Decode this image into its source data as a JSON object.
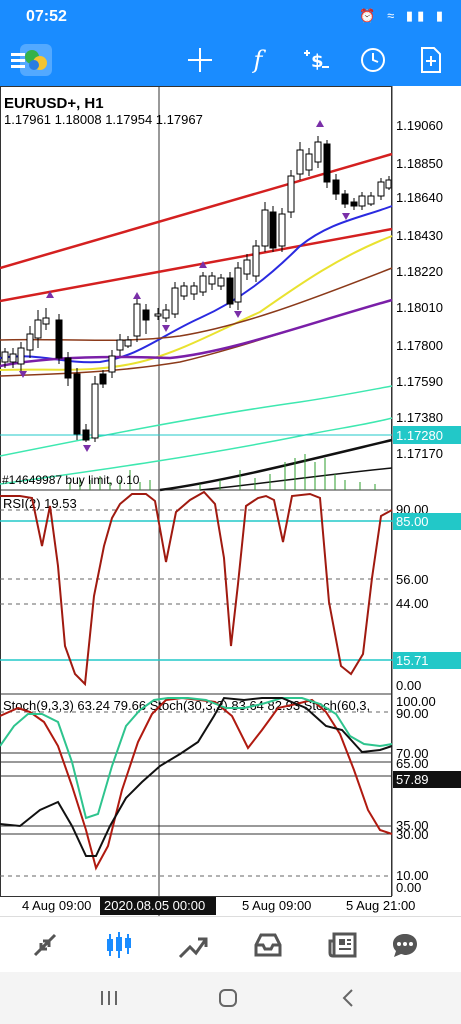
{
  "status_bar": {
    "time": "07:52",
    "icons": "⏰ ≈ ▮▮ ▮"
  },
  "toolbar": {
    "items": [
      "menu-icon",
      "app-logo",
      "crosshair-icon",
      "indicators-icon",
      "dollar-trade-icon",
      "timeframe-clock-icon",
      "new-document-icon"
    ],
    "color": "#1a8cff"
  },
  "chart": {
    "symbol_title": "EURUSD+, H1",
    "ohlc": "1.17961 1.18008 1.17954 1.17967",
    "current_price": "1.17280",
    "order_label": "#14649987 buy limit, 0.10",
    "price_axis": [
      "1.19060",
      "1.18850",
      "1.18640",
      "1.18430",
      "1.18220",
      "1.18010",
      "1.17800",
      "1.17590",
      "1.17380",
      "1.17170"
    ],
    "time_axis": [
      "4 Aug 09:00",
      "2020.08.05 00:00",
      "5 Aug 09:00",
      "5 Aug 21:00"
    ]
  },
  "rsi": {
    "label": "RSI(2) 19.53",
    "levels": [
      "90.00",
      "85.00",
      "56.00",
      "44.00",
      "15.71",
      "0.00"
    ]
  },
  "stoch": {
    "label": "Stoch(9,3,3) 63.24 79.66 Stoch(30,3,3) 83.64 82.93 Stoch(60,3,",
    "levels": [
      "100.00",
      "90.00",
      "70.00",
      "65.00",
      "57.89",
      "35.00",
      "30.00",
      "10.00",
      "0.00"
    ]
  },
  "bottom_nav": {
    "items": [
      "quotes-icon",
      "chart-icon",
      "trade-icon",
      "history-icon",
      "news-icon",
      "messages-icon"
    ],
    "active_color": "#1a8cff"
  },
  "system_nav": {
    "items": [
      "recents-icon",
      "home-icon",
      "back-icon"
    ]
  }
}
